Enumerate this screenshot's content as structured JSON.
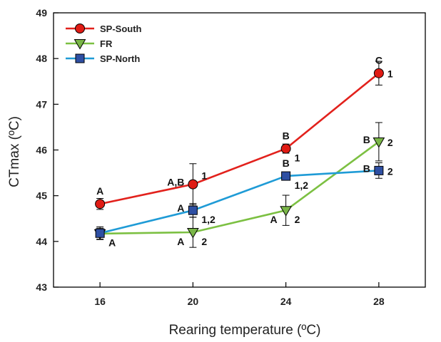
{
  "chart_data": {
    "type": "line",
    "xlabel": "Rearing temperature (ºC)",
    "ylabel": "CTmax (ºC)",
    "x": [
      16,
      20,
      24,
      28
    ],
    "x_tick_labels": [
      "16",
      "20",
      "24",
      "28"
    ],
    "xlim": [
      14,
      30
    ],
    "ylim": [
      43,
      49
    ],
    "y_ticks": [
      43,
      44,
      45,
      46,
      47,
      48,
      49
    ],
    "y_tick_labels": [
      "43",
      "44",
      "45",
      "46",
      "47",
      "48",
      "49"
    ],
    "grid": false,
    "legend_position": "top-left",
    "series": [
      {
        "name": "SP-South",
        "color": "#e2211c",
        "marker": "circle",
        "marker_color": "#e01b14",
        "values": [
          44.82,
          45.25,
          46.03,
          47.68
        ],
        "errors": [
          0.12,
          0.45,
          0.1,
          0.26
        ]
      },
      {
        "name": "FR",
        "color": "#7cc042",
        "marker": "triangle-down",
        "marker_color": "#7ab648",
        "values": [
          44.17,
          44.2,
          44.68,
          46.18
        ],
        "errors": [
          0.12,
          0.33,
          0.33,
          0.42
        ]
      },
      {
        "name": "SP-North",
        "color": "#1f9bd6",
        "marker": "square",
        "marker_color": "#2e4fa3",
        "values": [
          44.18,
          44.68,
          45.43,
          45.55
        ],
        "errors": [
          0.14,
          0.15,
          0.07,
          0.17
        ]
      }
    ],
    "annotations": [
      {
        "text": "A",
        "x": 16,
        "y": 44.82,
        "placement": "above"
      },
      {
        "text": "A",
        "x": 16,
        "y": 44.18,
        "placement": "below-right"
      },
      {
        "text": "A,B",
        "x": 20,
        "y": 45.25,
        "placement": "left"
      },
      {
        "text": "1",
        "x": 20,
        "y": 45.25,
        "placement": "upper-right"
      },
      {
        "text": "A",
        "x": 20,
        "y": 44.68,
        "placement": "left"
      },
      {
        "text": "1,2",
        "x": 20,
        "y": 44.68,
        "placement": "below-right"
      },
      {
        "text": "A",
        "x": 20,
        "y": 44.2,
        "placement": "below-left"
      },
      {
        "text": "2",
        "x": 20,
        "y": 44.2,
        "placement": "below-right"
      },
      {
        "text": "B",
        "x": 24,
        "y": 46.03,
        "placement": "above"
      },
      {
        "text": "1",
        "x": 24,
        "y": 46.03,
        "placement": "below-right"
      },
      {
        "text": "B",
        "x": 24,
        "y": 45.43,
        "placement": "above"
      },
      {
        "text": "1,2",
        "x": 24,
        "y": 45.43,
        "placement": "below-right"
      },
      {
        "text": "A",
        "x": 24,
        "y": 44.68,
        "placement": "below-left"
      },
      {
        "text": "2",
        "x": 24,
        "y": 44.68,
        "placement": "below-right"
      },
      {
        "text": "C",
        "x": 28,
        "y": 47.68,
        "placement": "above"
      },
      {
        "text": "1",
        "x": 28,
        "y": 47.68,
        "placement": "right"
      },
      {
        "text": "B",
        "x": 28,
        "y": 46.18,
        "placement": "left"
      },
      {
        "text": "2",
        "x": 28,
        "y": 46.18,
        "placement": "right"
      },
      {
        "text": "B",
        "x": 28,
        "y": 45.55,
        "placement": "left"
      },
      {
        "text": "2",
        "x": 28,
        "y": 45.55,
        "placement": "right"
      }
    ]
  }
}
